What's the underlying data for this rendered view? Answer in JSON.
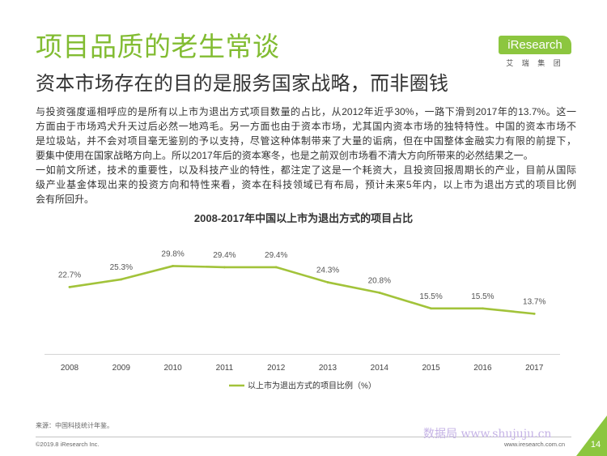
{
  "header": {
    "title": "项目品质的老生常谈",
    "subtitle": "资本市场存在的目的是服务国家战略，而非圈钱",
    "logo": {
      "brand": "iResearch",
      "sub": "艾 瑞 集 团"
    }
  },
  "body": {
    "paragraphs": [
      {
        "lines": [
          "与投资强度遥相呼应的是所有以上市为退出方式项目数量的占比，从2012年近乎30%，一路下滑到2017年的13.7%。这一",
          "方面由于市场鸡犬升天过后必然一地鸡毛。另一方面也由于资本市场，尤其国内资本市场的独特特性。中国的资本市场不",
          "是垃圾站，并不会对项目毫无鉴别的予以支持，尽管这种体制带来了大量的诟病，但在中国整体金融实力有限的前提下，",
          "要集中使用在国家战略方向上。所以2017年后的资本寒冬，也是之前双创市场看不清大方向所带来的必然结果之一。"
        ]
      },
      {
        "lines": [
          "一如前文所述，技术的重要性，以及科技产业的特性，都注定了这是一个耗资大，且投资回报周期长的产业，目前从国际",
          "级产业基金体现出来的投资方向和特性来看，资本在科技领域已有布局，预计未来5年内，以上市为退出方式的项目比例",
          "会有所回升。"
        ]
      }
    ]
  },
  "chart_data": {
    "type": "line",
    "title": "2008-2017年中国以上市为退出方式的项目占比",
    "xlabel": "",
    "ylabel": "",
    "categories": [
      "2008",
      "2009",
      "2010",
      "2011",
      "2012",
      "2013",
      "2014",
      "2015",
      "2016",
      "2017"
    ],
    "series": [
      {
        "name": "以上市为退出方式的项目比例（%）",
        "values": [
          22.7,
          25.3,
          29.8,
          29.4,
          29.4,
          24.3,
          20.8,
          15.5,
          15.5,
          13.7
        ],
        "data_labels": [
          "22.7%",
          "25.3%",
          "29.8%",
          "29.4%",
          "29.4%",
          "24.3%",
          "20.8%",
          "15.5%",
          "15.5%",
          "13.7%"
        ],
        "color": "#a2c33a"
      }
    ],
    "ylim": [
      0,
      40
    ],
    "grid": false,
    "legend": "bottom-center"
  },
  "footer": {
    "source": "来源：中国科技统计年鉴。",
    "copyright": "©2019.8 iResearch Inc.",
    "website": "www.iresearch.com.cn",
    "page_number": "14",
    "watermark": "数据局 www.shujuju.cn"
  },
  "colors": {
    "title_green": "#82bc32",
    "brand_green": "#8cc63f",
    "text": "#333333",
    "watermark": "#c5b3e6"
  }
}
